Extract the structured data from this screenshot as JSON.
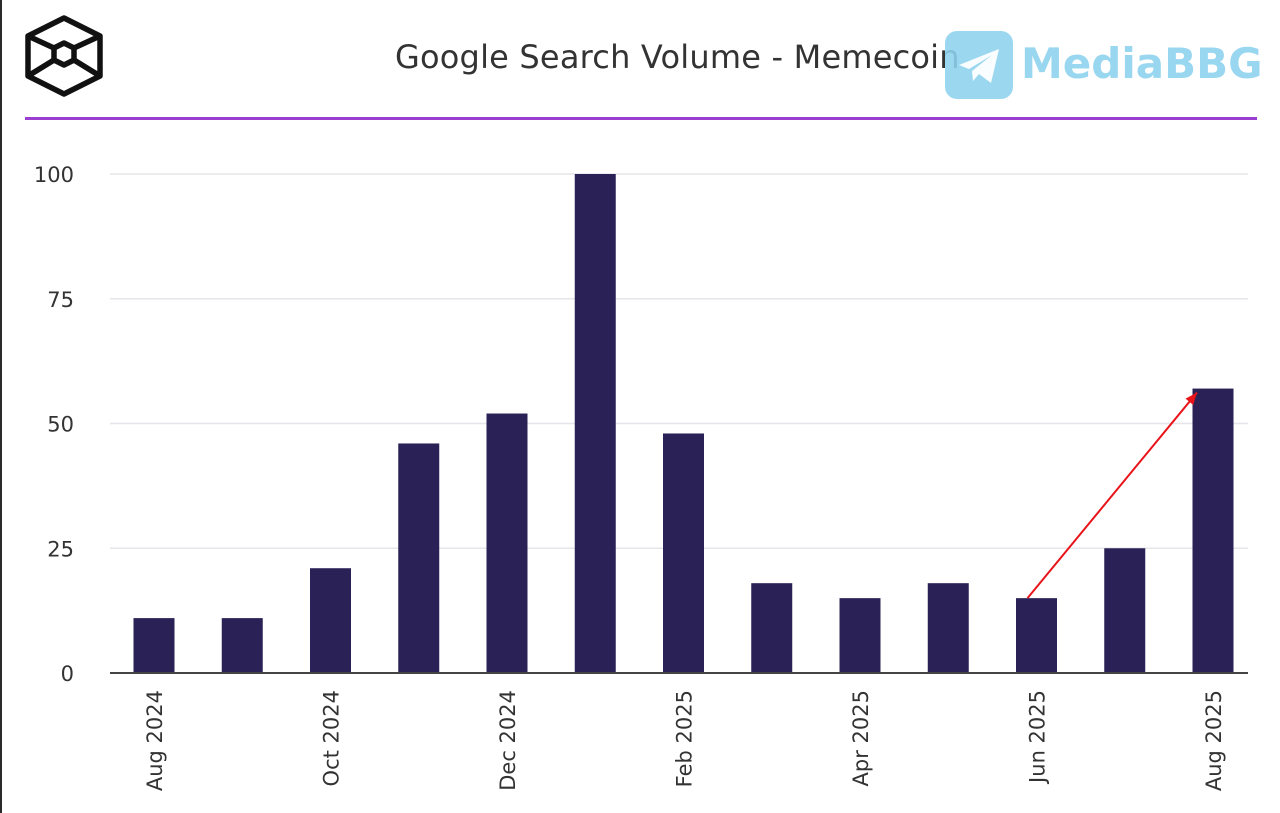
{
  "header": {
    "title": "Google Search Volume - Memecoin",
    "watermark_text": "MediaBBG",
    "logo_icon": "cube-logo-icon",
    "watermark_icon": "telegram-plane-icon"
  },
  "colors": {
    "bar": "#2a2256",
    "accent_rule": "#9a3fd0",
    "arrow": "#e8141a",
    "watermark": "#8ed3ef"
  },
  "chart_data": {
    "type": "bar",
    "title": "Google Search Volume - Memecoin",
    "xlabel": "",
    "ylabel": "",
    "ylim": [
      0,
      100
    ],
    "yticks": [
      0,
      25,
      50,
      75,
      100
    ],
    "grid": true,
    "categories": [
      "Aug 2024",
      "Sep 2024",
      "Oct 2024",
      "Nov 2024",
      "Dec 2024",
      "Jan 2025",
      "Feb 2025",
      "Mar 2025",
      "Apr 2025",
      "May 2025",
      "Jun 2025",
      "Jul 2025",
      "Aug 2025"
    ],
    "tick_labels": [
      "Aug 2024",
      "",
      "Oct 2024",
      "",
      "Dec 2024",
      "",
      "Feb 2025",
      "",
      "Apr 2025",
      "",
      "Jun 2025",
      "",
      "Aug 2025"
    ],
    "values": [
      11,
      11,
      21,
      46,
      52,
      100,
      48,
      18,
      15,
      18,
      15,
      25,
      57
    ],
    "annotations": [
      {
        "type": "arrow",
        "from": {
          "x": "Jun 2025",
          "y": 15
        },
        "to": {
          "x": "Aug 2025",
          "y": 56
        }
      }
    ]
  }
}
